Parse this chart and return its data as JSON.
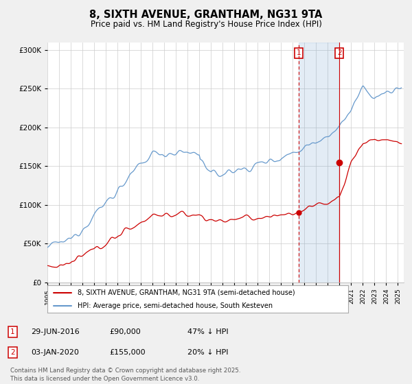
{
  "title": "8, SIXTH AVENUE, GRANTHAM, NG31 9TA",
  "subtitle": "Price paid vs. HM Land Registry's House Price Index (HPI)",
  "ylim": [
    0,
    310000
  ],
  "xlim_start": 1995.0,
  "xlim_end": 2025.5,
  "transaction1_date": 2016.5,
  "transaction1_price": 90000,
  "transaction2_date": 2020.0,
  "transaction2_price": 155000,
  "legend_red_label": "8, SIXTH AVENUE, GRANTHAM, NG31 9TA (semi-detached house)",
  "legend_blue_label": "HPI: Average price, semi-detached house, South Kesteven",
  "footer": "Contains HM Land Registry data © Crown copyright and database right 2025.\nThis data is licensed under the Open Government Licence v3.0.",
  "bg_color": "#f0f0f0",
  "plot_bg_color": "#ffffff",
  "red_color": "#cc0000",
  "blue_color": "#6699cc",
  "blue_fill_color": "#dce9f5"
}
